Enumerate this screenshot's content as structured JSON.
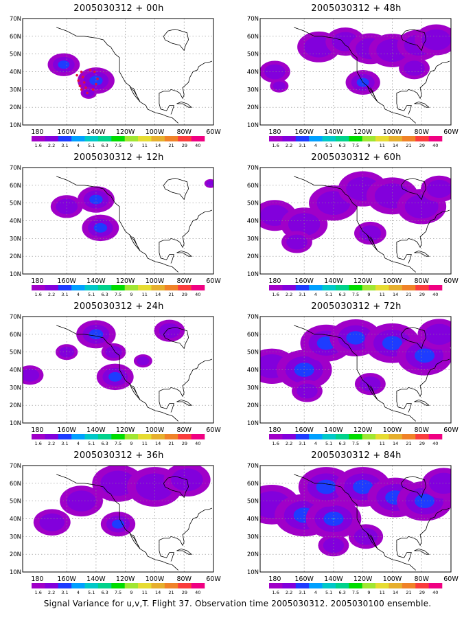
{
  "chart_data": {
    "type": "heatmap",
    "levels": [
      "1.6",
      "2.2",
      "3.1",
      "4",
      "5.1",
      "6.3",
      "7.5",
      "9",
      "11",
      "14",
      "21",
      "29",
      "40"
    ],
    "colors": [
      "#a000c8",
      "#8200dc",
      "#1e3cff",
      "#00a0ff",
      "#00c8c8",
      "#00d28c",
      "#00dc00",
      "#a0e632",
      "#e6dc32",
      "#e6af2d",
      "#f08228",
      "#fa3c3c",
      "#f00082"
    ],
    "x_ticks": [
      "180",
      "160W",
      "140W",
      "120W",
      "100W",
      "80W",
      "60W"
    ],
    "y_ticks": [
      "10N",
      "20N",
      "30N",
      "40N",
      "50N",
      "60N",
      "70N"
    ],
    "xlim": [
      -190,
      -60
    ],
    "ylim": [
      10,
      70
    ],
    "grid": true,
    "panels": [
      {
        "title": "2005030312 + 00h",
        "blobs": [
          {
            "lon": -162,
            "lat": 44,
            "r": 2.6,
            "level": 2
          },
          {
            "lon": -140,
            "lat": 35,
            "r": 3.0,
            "level": 2
          },
          {
            "lon": -145,
            "lat": 28,
            "r": 1.3,
            "level": 1
          }
        ],
        "marks": [
          [
            -150,
            40
          ],
          [
            -149,
            37
          ],
          [
            -148,
            34
          ],
          [
            -147,
            31
          ],
          [
            -146,
            28
          ],
          [
            -153,
            38
          ],
          [
            -152,
            35
          ],
          [
            -151,
            32
          ],
          [
            -150,
            30
          ],
          [
            -144,
            41
          ],
          [
            -141,
            40
          ],
          [
            -139,
            36
          ],
          [
            -140,
            33
          ],
          [
            -142,
            30
          ]
        ]
      },
      {
        "title": "2005030312 + 48h",
        "blobs": [
          {
            "lon": -180,
            "lat": 40,
            "r": 2.5,
            "level": 1
          },
          {
            "lon": -177,
            "lat": 32,
            "r": 1.5,
            "level": 1
          },
          {
            "lon": -150,
            "lat": 54,
            "r": 3.5,
            "level": 1
          },
          {
            "lon": -132,
            "lat": 57,
            "r": 3.2,
            "level": 1
          },
          {
            "lon": -115,
            "lat": 53,
            "r": 3.5,
            "level": 1
          },
          {
            "lon": -100,
            "lat": 52,
            "r": 3.8,
            "level": 1
          },
          {
            "lon": -82,
            "lat": 55,
            "r": 3.5,
            "level": 1
          },
          {
            "lon": -70,
            "lat": 58,
            "r": 3.5,
            "level": 1
          },
          {
            "lon": -120,
            "lat": 34,
            "r": 2.8,
            "level": 2
          },
          {
            "lon": -85,
            "lat": 42,
            "r": 2.5,
            "level": 1
          }
        ],
        "marks": []
      },
      {
        "title": "2005030312 + 12h",
        "blobs": [
          {
            "lon": -160,
            "lat": 48,
            "r": 2.6,
            "level": 1
          },
          {
            "lon": -140,
            "lat": 52,
            "r": 3.0,
            "level": 2
          },
          {
            "lon": -137,
            "lat": 36,
            "r": 3.0,
            "level": 2
          },
          {
            "lon": -62,
            "lat": 61,
            "r": 1.0,
            "level": 1
          }
        ],
        "marks": []
      },
      {
        "title": "2005030312 + 60h",
        "blobs": [
          {
            "lon": -180,
            "lat": 43,
            "r": 3.5,
            "level": 1
          },
          {
            "lon": -160,
            "lat": 38,
            "r": 3.8,
            "level": 1
          },
          {
            "lon": -165,
            "lat": 28,
            "r": 2.5,
            "level": 1
          },
          {
            "lon": -140,
            "lat": 50,
            "r": 4.0,
            "level": 1
          },
          {
            "lon": -120,
            "lat": 58,
            "r": 4.0,
            "level": 1
          },
          {
            "lon": -100,
            "lat": 54,
            "r": 4.2,
            "level": 1
          },
          {
            "lon": -80,
            "lat": 48,
            "r": 4.0,
            "level": 1
          },
          {
            "lon": -68,
            "lat": 58,
            "r": 3.0,
            "level": 1
          },
          {
            "lon": -115,
            "lat": 33,
            "r": 2.6,
            "level": 1
          }
        ],
        "marks": []
      },
      {
        "title": "2005030312 + 24h",
        "blobs": [
          {
            "lon": -185,
            "lat": 37,
            "r": 2.2,
            "level": 1
          },
          {
            "lon": -160,
            "lat": 50,
            "r": 1.8,
            "level": 1
          },
          {
            "lon": -140,
            "lat": 60,
            "r": 3.2,
            "level": 2
          },
          {
            "lon": -128,
            "lat": 50,
            "r": 2.0,
            "level": 1
          },
          {
            "lon": -127,
            "lat": 36,
            "r": 3.0,
            "level": 2
          },
          {
            "lon": -108,
            "lat": 45,
            "r": 1.5,
            "level": 1
          },
          {
            "lon": -90,
            "lat": 62,
            "r": 2.5,
            "level": 1
          }
        ],
        "marks": []
      },
      {
        "title": "2005030312 + 72h",
        "blobs": [
          {
            "lon": -182,
            "lat": 42,
            "r": 4.0,
            "level": 1
          },
          {
            "lon": -160,
            "lat": 40,
            "r": 4.5,
            "level": 2
          },
          {
            "lon": -145,
            "lat": 55,
            "r": 4.2,
            "level": 2
          },
          {
            "lon": -125,
            "lat": 58,
            "r": 4.2,
            "level": 2
          },
          {
            "lon": -100,
            "lat": 55,
            "r": 4.5,
            "level": 2
          },
          {
            "lon": -78,
            "lat": 48,
            "r": 4.5,
            "level": 2
          },
          {
            "lon": -68,
            "lat": 60,
            "r": 3.5,
            "level": 1
          },
          {
            "lon": -158,
            "lat": 28,
            "r": 2.5,
            "level": 1
          },
          {
            "lon": -115,
            "lat": 32,
            "r": 2.5,
            "level": 1
          }
        ],
        "marks": []
      },
      {
        "title": "2005030312 + 36h",
        "blobs": [
          {
            "lon": -170,
            "lat": 38,
            "r": 3.0,
            "level": 1
          },
          {
            "lon": -150,
            "lat": 50,
            "r": 3.5,
            "level": 1
          },
          {
            "lon": -125,
            "lat": 60,
            "r": 4.2,
            "level": 1
          },
          {
            "lon": -100,
            "lat": 58,
            "r": 4.5,
            "level": 1
          },
          {
            "lon": -78,
            "lat": 62,
            "r": 3.8,
            "level": 1
          },
          {
            "lon": -125,
            "lat": 37,
            "r": 2.8,
            "level": 2
          }
        ],
        "marks": []
      },
      {
        "title": "2005030312 + 84h",
        "blobs": [
          {
            "lon": -182,
            "lat": 48,
            "r": 4.5,
            "level": 1
          },
          {
            "lon": -160,
            "lat": 42,
            "r": 4.8,
            "level": 2
          },
          {
            "lon": -140,
            "lat": 40,
            "r": 4.5,
            "level": 3
          },
          {
            "lon": -145,
            "lat": 58,
            "r": 4.5,
            "level": 2
          },
          {
            "lon": -120,
            "lat": 58,
            "r": 4.5,
            "level": 2
          },
          {
            "lon": -98,
            "lat": 52,
            "r": 4.5,
            "level": 2
          },
          {
            "lon": -78,
            "lat": 50,
            "r": 4.5,
            "level": 2
          },
          {
            "lon": -65,
            "lat": 60,
            "r": 3.5,
            "level": 1
          },
          {
            "lon": -118,
            "lat": 30,
            "r": 2.8,
            "level": 1
          },
          {
            "lon": -140,
            "lat": 25,
            "r": 2.5,
            "level": 1
          }
        ],
        "marks": []
      }
    ]
  },
  "caption": "Signal Variance for u,v,T. Flight 37. Observation time 2005030312. 2005030100 ensemble."
}
